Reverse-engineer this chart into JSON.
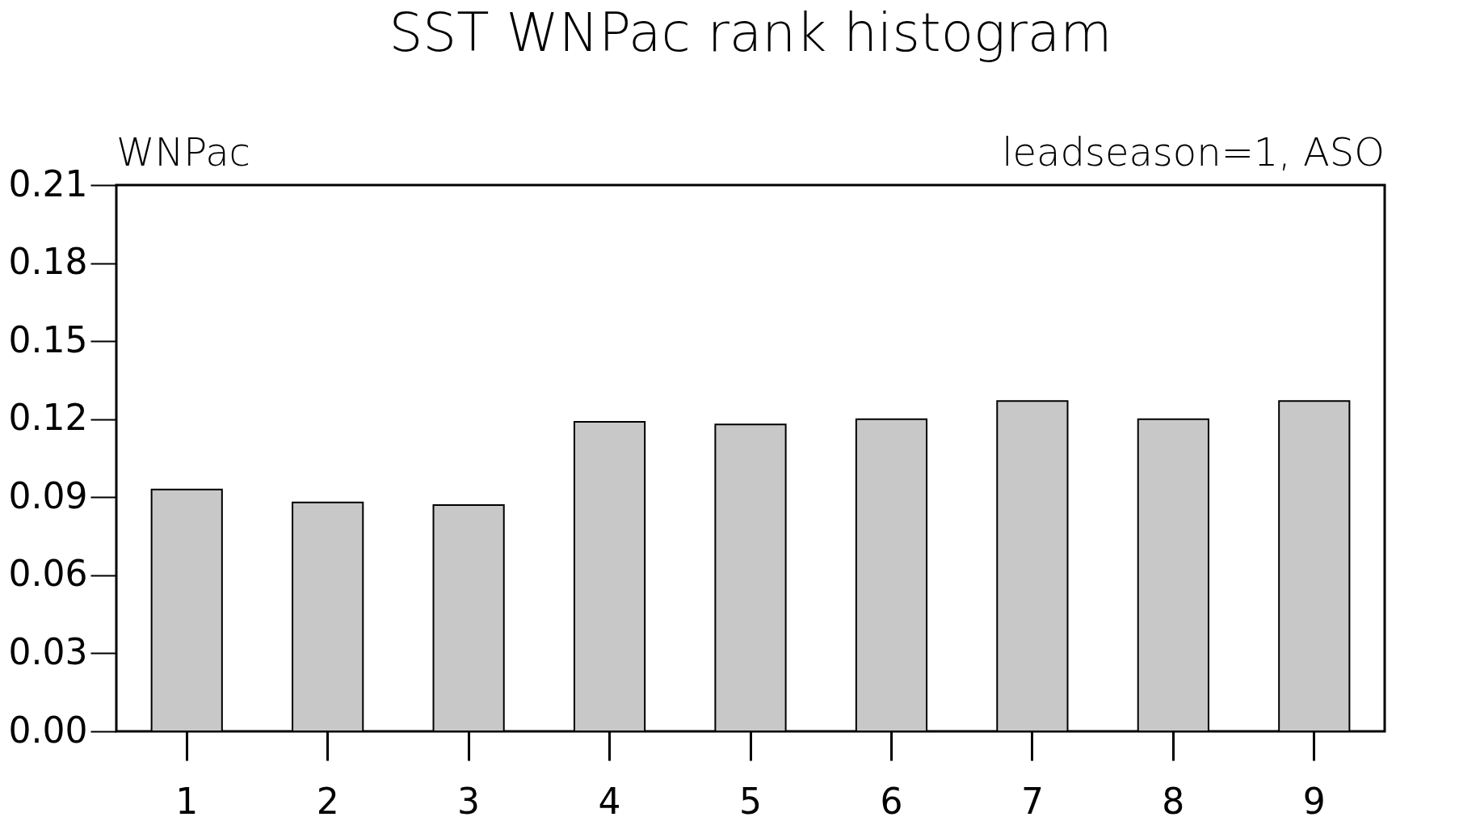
{
  "chart_data": {
    "type": "bar",
    "title": "SST WNPac rank histogram",
    "annotations": [
      "WNPac",
      "leadseason=1, ASO"
    ],
    "categories": [
      "1",
      "2",
      "3",
      "4",
      "5",
      "6",
      "7",
      "8",
      "9"
    ],
    "values": [
      0.093,
      0.088,
      0.087,
      0.119,
      0.118,
      0.12,
      0.127,
      0.12,
      0.127
    ],
    "color": "#c8c8c8",
    "ylim": [
      0,
      0.21
    ],
    "yticks": [
      {
        "value": 0,
        "label": "0.00"
      },
      {
        "value": 0.03,
        "label": "0.03"
      },
      {
        "value": 0.06,
        "label": "0.06"
      },
      {
        "value": 0.09,
        "label": "0.09"
      },
      {
        "value": 0.12,
        "label": "0.12"
      },
      {
        "value": 0.15,
        "label": "0.15"
      },
      {
        "value": 0.18,
        "label": "0.18"
      },
      {
        "value": 0.21,
        "label": "0.21"
      }
    ],
    "grid": false
  }
}
